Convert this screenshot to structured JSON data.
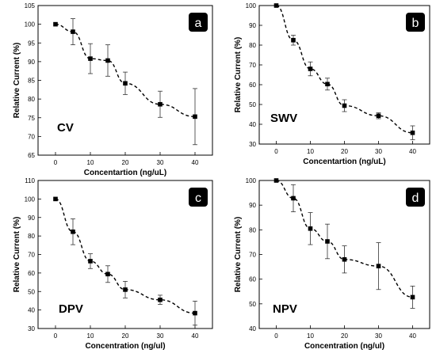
{
  "chart_data": [
    {
      "type": "line",
      "panel": "a",
      "label": "CV",
      "xlabel": "Concentartion (ng/uL)",
      "ylabel": "Relative Current (%)",
      "xlim": [
        -5,
        45
      ],
      "ylim": [
        65,
        105
      ],
      "xticks": [
        0,
        10,
        20,
        30,
        40
      ],
      "yticks": [
        65,
        70,
        75,
        80,
        85,
        90,
        95,
        100,
        105
      ],
      "x": [
        0,
        5,
        10,
        15,
        20,
        30,
        40
      ],
      "y": [
        100,
        98,
        90.8,
        90.3,
        84.2,
        78.6,
        75.3
      ],
      "err": [
        0,
        3.5,
        4.0,
        4.2,
        3.0,
        3.5,
        7.5
      ]
    },
    {
      "type": "line",
      "panel": "b",
      "label": "SWV",
      "xlabel": "Concentartion (ng/uL)",
      "ylabel": "Relative Current (%)",
      "xlim": [
        -5,
        45
      ],
      "ylim": [
        30,
        100
      ],
      "xticks": [
        0,
        10,
        20,
        30,
        40
      ],
      "yticks": [
        30,
        40,
        50,
        60,
        70,
        80,
        90,
        100
      ],
      "x": [
        0,
        5,
        10,
        15,
        20,
        30,
        40
      ],
      "y": [
        100,
        82.5,
        68,
        60.3,
        49.4,
        44.3,
        35.7
      ],
      "err": [
        0,
        2.5,
        3.5,
        3.0,
        3.0,
        1.5,
        3.5
      ]
    },
    {
      "type": "line",
      "panel": "c",
      "label": "DPV",
      "xlabel": "Concentration (ng/ul)",
      "ylabel": "Relative Current (%)",
      "xlim": [
        -5,
        45
      ],
      "ylim": [
        30,
        110
      ],
      "xticks": [
        0,
        10,
        20,
        30,
        40
      ],
      "yticks": [
        30,
        40,
        50,
        60,
        70,
        80,
        90,
        100,
        110
      ],
      "x": [
        0,
        5,
        10,
        15,
        20,
        30,
        40
      ],
      "y": [
        100,
        82.3,
        66.4,
        59.4,
        51,
        45.5,
        38.3
      ],
      "err": [
        0,
        7.0,
        4.0,
        4.5,
        4.5,
        2.5,
        6.5
      ]
    },
    {
      "type": "line",
      "panel": "d",
      "label": "NPV",
      "xlabel": "Concentration (ng/ul)",
      "ylabel": "Relative Current (%)",
      "xlim": [
        -5,
        45
      ],
      "ylim": [
        40,
        100
      ],
      "xticks": [
        0,
        10,
        20,
        30,
        40
      ],
      "yticks": [
        40,
        50,
        60,
        70,
        80,
        90,
        100
      ],
      "x": [
        0,
        5,
        10,
        15,
        20,
        30,
        40
      ],
      "y": [
        100,
        92.8,
        80.5,
        75.3,
        68,
        65.3,
        52.7
      ],
      "err": [
        0,
        5.5,
        6.5,
        7.0,
        5.5,
        9.5,
        4.5
      ]
    }
  ]
}
